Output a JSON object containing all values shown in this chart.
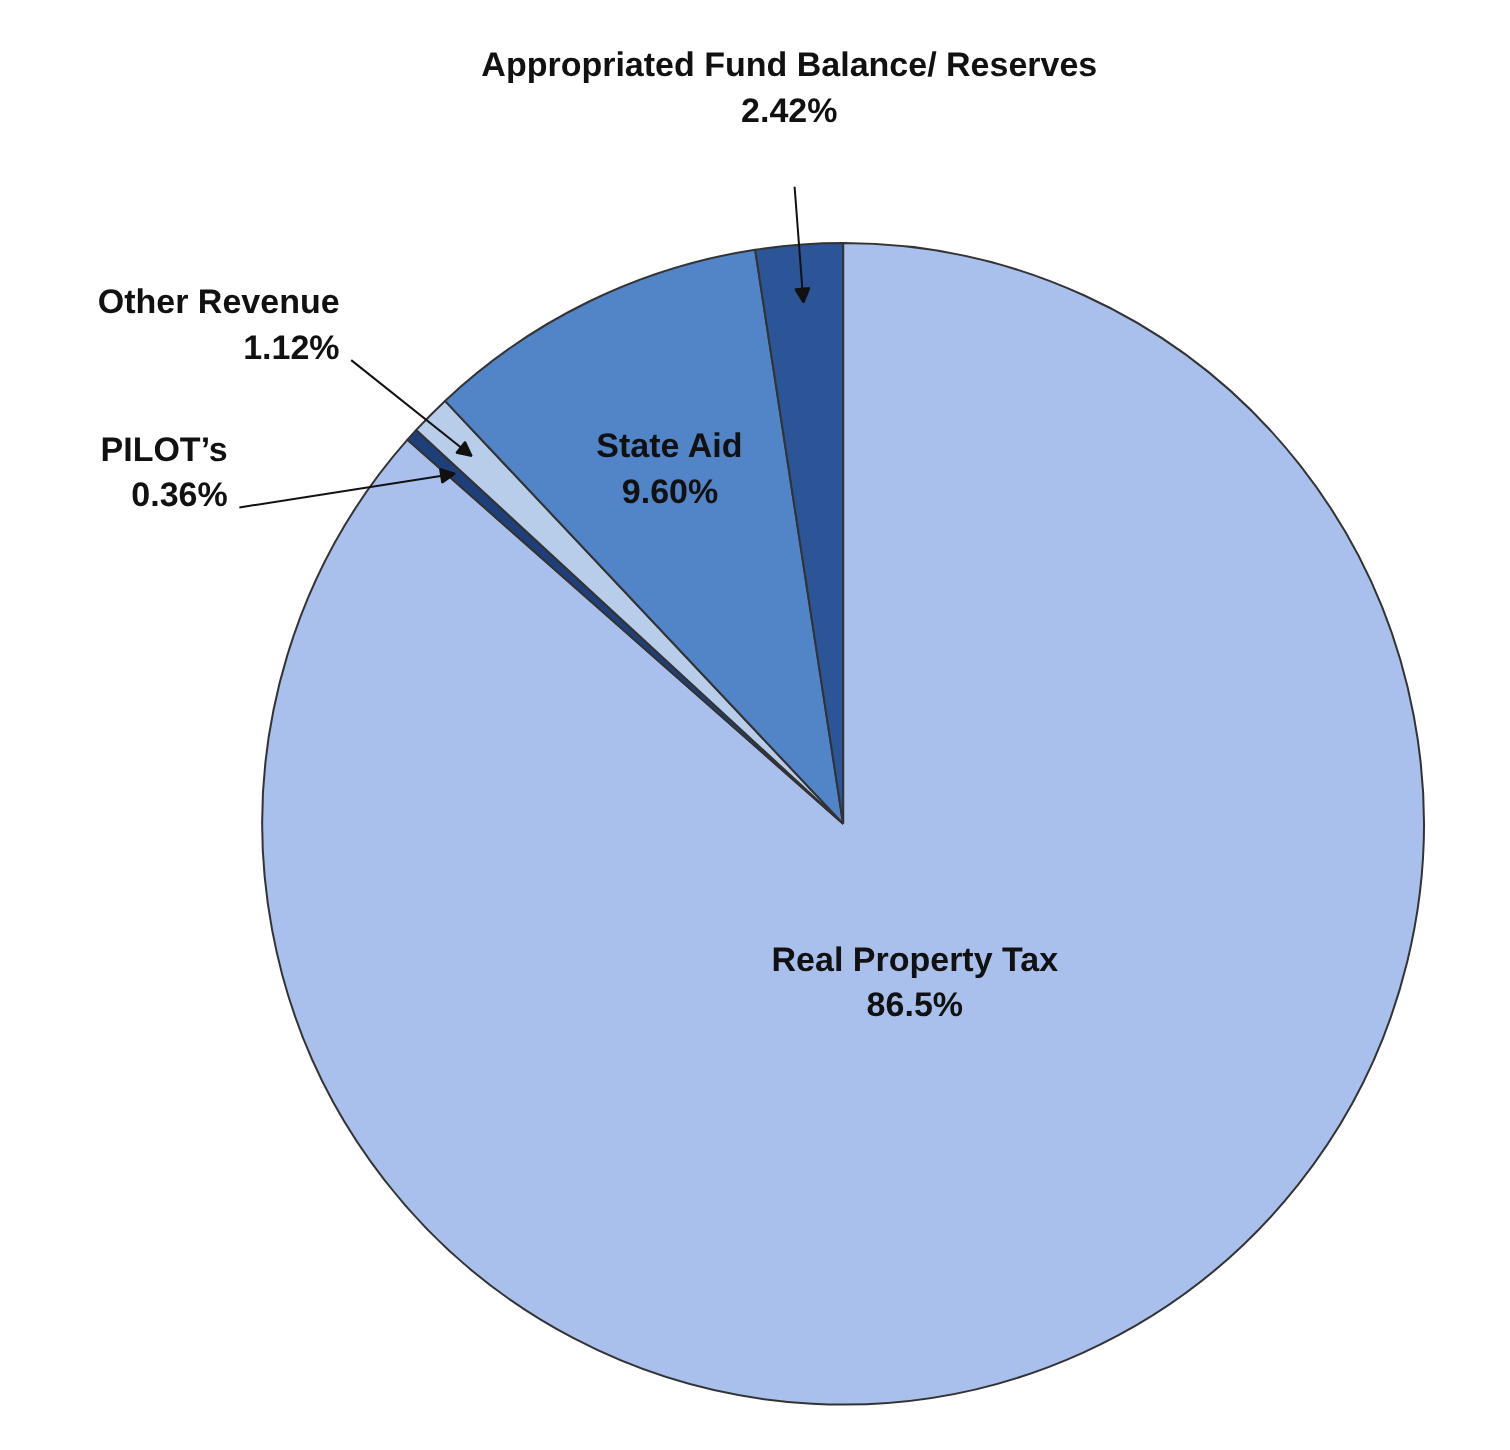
{
  "chart_data": {
    "type": "pie",
    "categories": [
      "Real Property Tax",
      "PILOT’s",
      "Other Revenue",
      "State Aid",
      "Appropriated Fund Balance/ Reserves"
    ],
    "values": [
      86.5,
      0.36,
      1.12,
      9.6,
      2.42
    ],
    "value_labels": [
      "86.5%",
      "0.36%",
      "1.12%",
      "9.60%",
      "2.42%"
    ],
    "colors": [
      "#a9c0ec",
      "#1f3f7a",
      "#b7cde9",
      "#5284c8",
      "#2c5597"
    ]
  }
}
